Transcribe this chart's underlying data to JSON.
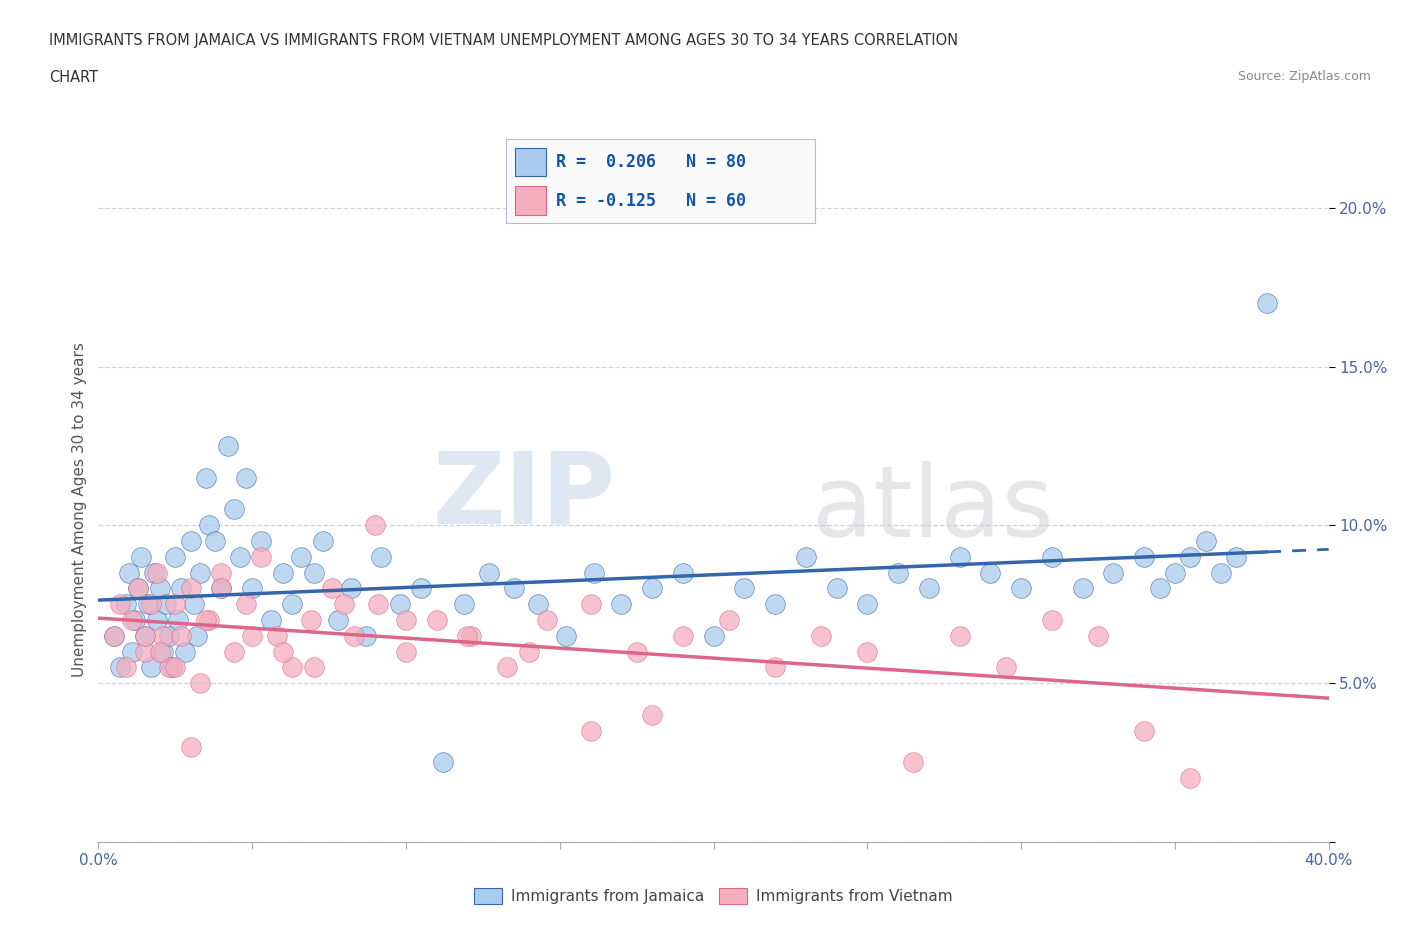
{
  "title_line1": "IMMIGRANTS FROM JAMAICA VS IMMIGRANTS FROM VIETNAM UNEMPLOYMENT AMONG AGES 30 TO 34 YEARS CORRELATION",
  "title_line2": "CHART",
  "source": "Source: ZipAtlas.com",
  "ylabel": "Unemployment Among Ages 30 to 34 years",
  "xlim": [
    0.0,
    0.4
  ],
  "ylim": [
    0.0,
    0.21
  ],
  "xticks": [
    0.0,
    0.05,
    0.1,
    0.15,
    0.2,
    0.25,
    0.3,
    0.35,
    0.4
  ],
  "yticks": [
    0.0,
    0.05,
    0.1,
    0.15,
    0.2
  ],
  "jamaica_color": "#aaccee",
  "vietnam_color": "#f4aec0",
  "jamaica_line_color": "#3366aa",
  "vietnam_line_color": "#dd6688",
  "jamaica_R": 0.206,
  "jamaica_N": 80,
  "vietnam_R": -0.125,
  "vietnam_N": 60,
  "watermark_zip": "ZIP",
  "watermark_atlas": "atlas",
  "background_color": "#ffffff",
  "grid_color": "#ccccdd",
  "jamaica_x": [
    0.005,
    0.007,
    0.009,
    0.01,
    0.011,
    0.012,
    0.013,
    0.014,
    0.015,
    0.016,
    0.017,
    0.018,
    0.019,
    0.02,
    0.021,
    0.022,
    0.023,
    0.024,
    0.025,
    0.026,
    0.027,
    0.028,
    0.03,
    0.031,
    0.032,
    0.033,
    0.035,
    0.036,
    0.038,
    0.04,
    0.042,
    0.044,
    0.046,
    0.048,
    0.05,
    0.053,
    0.056,
    0.06,
    0.063,
    0.066,
    0.07,
    0.073,
    0.078,
    0.082,
    0.087,
    0.092,
    0.098,
    0.105,
    0.112,
    0.119,
    0.127,
    0.135,
    0.143,
    0.152,
    0.161,
    0.17,
    0.18,
    0.19,
    0.2,
    0.21,
    0.22,
    0.23,
    0.24,
    0.25,
    0.26,
    0.27,
    0.28,
    0.29,
    0.3,
    0.31,
    0.32,
    0.33,
    0.34,
    0.345,
    0.35,
    0.355,
    0.36,
    0.365,
    0.37,
    0.38
  ],
  "jamaica_y": [
    0.065,
    0.055,
    0.075,
    0.085,
    0.06,
    0.07,
    0.08,
    0.09,
    0.065,
    0.075,
    0.055,
    0.085,
    0.07,
    0.08,
    0.06,
    0.075,
    0.065,
    0.055,
    0.09,
    0.07,
    0.08,
    0.06,
    0.095,
    0.075,
    0.065,
    0.085,
    0.115,
    0.1,
    0.095,
    0.08,
    0.125,
    0.105,
    0.09,
    0.115,
    0.08,
    0.095,
    0.07,
    0.085,
    0.075,
    0.09,
    0.085,
    0.095,
    0.07,
    0.08,
    0.065,
    0.09,
    0.075,
    0.08,
    0.025,
    0.075,
    0.085,
    0.08,
    0.075,
    0.065,
    0.085,
    0.075,
    0.08,
    0.085,
    0.065,
    0.08,
    0.075,
    0.09,
    0.08,
    0.075,
    0.085,
    0.08,
    0.09,
    0.085,
    0.08,
    0.09,
    0.08,
    0.085,
    0.09,
    0.08,
    0.085,
    0.09,
    0.095,
    0.085,
    0.09,
    0.17
  ],
  "vietnam_x": [
    0.005,
    0.007,
    0.009,
    0.011,
    0.013,
    0.015,
    0.017,
    0.019,
    0.021,
    0.023,
    0.025,
    0.027,
    0.03,
    0.033,
    0.036,
    0.04,
    0.044,
    0.048,
    0.053,
    0.058,
    0.063,
    0.069,
    0.076,
    0.083,
    0.091,
    0.1,
    0.11,
    0.121,
    0.133,
    0.146,
    0.16,
    0.175,
    0.19,
    0.205,
    0.22,
    0.235,
    0.25,
    0.265,
    0.28,
    0.295,
    0.31,
    0.325,
    0.34,
    0.355,
    0.015,
    0.02,
    0.025,
    0.03,
    0.035,
    0.04,
    0.05,
    0.06,
    0.07,
    0.08,
    0.09,
    0.1,
    0.12,
    0.14,
    0.16,
    0.18
  ],
  "vietnam_y": [
    0.065,
    0.075,
    0.055,
    0.07,
    0.08,
    0.06,
    0.075,
    0.085,
    0.065,
    0.055,
    0.075,
    0.065,
    0.08,
    0.05,
    0.07,
    0.085,
    0.06,
    0.075,
    0.09,
    0.065,
    0.055,
    0.07,
    0.08,
    0.065,
    0.075,
    0.06,
    0.07,
    0.065,
    0.055,
    0.07,
    0.075,
    0.06,
    0.065,
    0.07,
    0.055,
    0.065,
    0.06,
    0.025,
    0.065,
    0.055,
    0.07,
    0.065,
    0.035,
    0.02,
    0.065,
    0.06,
    0.055,
    0.03,
    0.07,
    0.08,
    0.065,
    0.06,
    0.055,
    0.075,
    0.1,
    0.07,
    0.065,
    0.06,
    0.035,
    0.04
  ]
}
